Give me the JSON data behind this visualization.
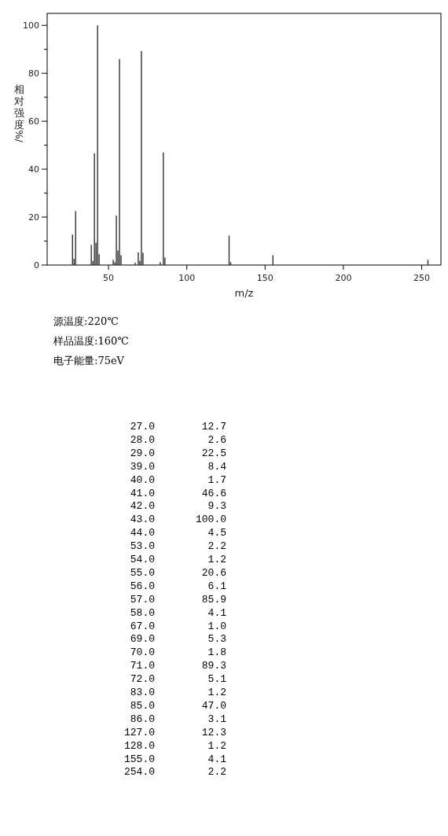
{
  "chart_data": {
    "type": "bar",
    "xlabel": "m/z",
    "ylabel": "相对强度%/",
    "x": [
      27,
      28,
      29,
      39,
      40,
      41,
      42,
      43,
      44,
      53,
      54,
      55,
      56,
      57,
      58,
      67,
      69,
      70,
      71,
      72,
      83,
      85,
      86,
      127,
      128,
      155,
      254
    ],
    "values": [
      12.7,
      2.6,
      22.5,
      8.4,
      1.7,
      46.6,
      9.3,
      100,
      4.5,
      2.2,
      1.2,
      20.6,
      6.1,
      85.9,
      4.1,
      1.0,
      5.3,
      1.8,
      89.3,
      5.1,
      1.2,
      47.0,
      3.1,
      12.3,
      1.2,
      4.1,
      2.2
    ],
    "color": "#333333",
    "xlim": [
      10.8,
      262.3
    ],
    "xticks": [
      50,
      100,
      150,
      200,
      250
    ],
    "ylim": [
      0,
      105
    ],
    "yticks": [
      0,
      {
        "value": 10,
        "label": null
      },
      20,
      {
        "value": 30,
        "label": null
      },
      40,
      {
        "value": 50,
        "label": null
      },
      60,
      {
        "value": 70,
        "label": null
      },
      80,
      {
        "value": 90,
        "label": null
      },
      100
    ],
    "annotations": [
      "源温度:220℃",
      "样品温度:160℃",
      "电子能量:75eV",
      "27.0",
      "12.7",
      "28.0",
      "2.6",
      "29.0",
      "22.5",
      "39.0",
      "8.4",
      "40.0",
      "1.7",
      "41.0",
      "46.6",
      "42.0",
      "9.3",
      "43.0",
      "100.0",
      "44.0",
      "4.5",
      "53.0",
      "2.2",
      "54.0",
      "1.2",
      "55.0",
      "20.6",
      "56.0",
      "6.1",
      "57.0",
      "85.9",
      "58.0",
      "4.1",
      "67.0",
      "1.0",
      "69.0",
      "5.3",
      "70.0",
      "1.8",
      "71.0",
      "89.3",
      "72.0",
      "5.1",
      "83.0",
      "1.2",
      "85.0",
      "47.0",
      "86.0",
      "3.1",
      "127.0",
      "12.3",
      "128.0",
      "1.2",
      "155.0",
      "4.1",
      "254.0",
      "2.2"
    ]
  }
}
